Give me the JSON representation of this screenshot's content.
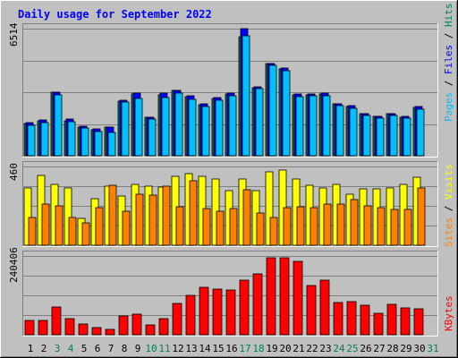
{
  "chart_data": {
    "type": "bar",
    "title": "Daily usage for September 2022",
    "categories": [
      "1",
      "2",
      "3",
      "4",
      "5",
      "6",
      "7",
      "8",
      "9",
      "10",
      "11",
      "12",
      "13",
      "14",
      "15",
      "16",
      "17",
      "18",
      "19",
      "20",
      "21",
      "22",
      "23",
      "24",
      "25",
      "26",
      "27",
      "28",
      "29",
      "30",
      "31"
    ],
    "weekend_days": [
      "3",
      "4",
      "10",
      "11",
      "17",
      "18",
      "24",
      "25",
      "31"
    ],
    "panels": [
      {
        "id": "top",
        "max_label": "6514",
        "ylim": [
          0,
          6514
        ],
        "series": [
          {
            "name": "Hits",
            "color": "#00805c",
            "values": [
              1660,
              1770,
              3240,
              1810,
              1480,
              1330,
              1450,
              2800,
              3150,
              1960,
              3140,
              3330,
              3050,
              2620,
              2930,
              3160,
              6100,
              3500,
              4710,
              4460,
              3110,
              3130,
              3160,
              2640,
              2530,
              2140,
              2010,
              2150,
              1990,
              2500
            ]
          },
          {
            "name": "Files",
            "color": "#0000ff",
            "values": [
              1680,
              1830,
              3260,
              1860,
              1520,
              1370,
              1480,
              2830,
              3200,
              1980,
              3190,
              3360,
              3090,
              2660,
              2970,
              3190,
              6510,
              3520,
              4740,
              4490,
              3150,
              3170,
              3200,
              2670,
              2560,
              2170,
              2030,
              2170,
              2010,
              2530
            ]
          },
          {
            "name": "Pages",
            "color": "#00c0ff",
            "values": [
              1580,
              1710,
              3140,
              1760,
              1420,
              1250,
              1180,
              2740,
              2920,
              1900,
              2980,
              3230,
              2910,
              2530,
              2840,
              3080,
              6140,
              3420,
              4650,
              4380,
              3050,
              3060,
              3080,
              2550,
              2440,
              2080,
              1930,
              2050,
              1910,
              2380
            ]
          }
        ]
      },
      {
        "id": "mid",
        "max_label": "460",
        "ylim": [
          0,
          460
        ],
        "series": [
          {
            "name": "Visits",
            "color": "#ffff00",
            "values": [
              333,
              408,
              356,
              336,
              155,
              270,
              345,
              290,
              355,
              345,
              342,
              405,
              420,
              405,
              385,
              318,
              385,
              320,
              430,
              437,
              388,
              350,
              333,
              353,
              297,
              330,
              327,
              333,
              356,
              395
            ]
          },
          {
            "name": "Sites",
            "color": "#ff8000",
            "values": [
              160,
              238,
              232,
              162,
              132,
              220,
              350,
              200,
              298,
              295,
              345,
              225,
              375,
              215,
              197,
              215,
              322,
              190,
              160,
              217,
              225,
              217,
              240,
              240,
              265,
              232,
              220,
              208,
              207,
              337
            ]
          }
        ]
      },
      {
        "id": "bot",
        "max_label": "240406",
        "ylim": [
          0,
          240406
        ],
        "series": [
          {
            "name": "KBytes",
            "color": "#ff0000",
            "values": [
              43000,
              43000,
              84000,
              48000,
              33000,
              22000,
              17000,
              57000,
              62000,
              31000,
              50000,
              96000,
              120000,
              144000,
              138000,
              137000,
              166000,
              186000,
              234000,
              234000,
              225000,
              150000,
              167000,
              99000,
              101000,
              91000,
              65000,
              93000,
              82000,
              80000
            ]
          }
        ]
      }
    ],
    "legend_right": {
      "top": [
        {
          "text": "Pages",
          "color": "#00c0ff"
        },
        {
          "text": " / ",
          "color": "#000000"
        },
        {
          "text": "Files",
          "color": "#0000ff"
        },
        {
          "text": " / ",
          "color": "#000000"
        },
        {
          "text": "Hits",
          "color": "#00805c"
        }
      ],
      "mid": [
        {
          "text": "Sites",
          "color": "#ff8000"
        },
        {
          "text": " / ",
          "color": "#000000"
        },
        {
          "text": "Visits",
          "color": "#ffff00"
        }
      ],
      "bot": [
        {
          "text": "KBytes",
          "color": "#ff0000"
        }
      ]
    },
    "colors": {
      "background": "#c0c0c0",
      "title": "#0000ff",
      "weekday_label": "#000000",
      "weekend_label": "#00805c",
      "grid": "#808080"
    }
  }
}
